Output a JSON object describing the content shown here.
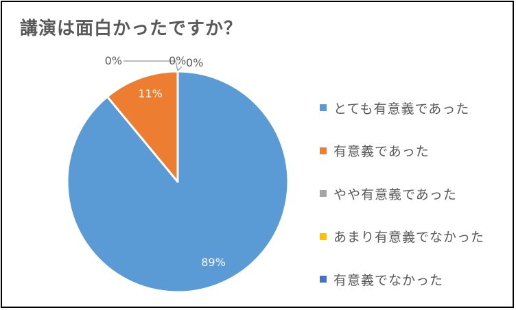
{
  "chart_data": {
    "type": "pie",
    "title": "講演は面白かったですか？",
    "categories": [
      "とても有意義であった",
      "有意義であった",
      "やや有意義であった",
      "あまり有意義でなかった",
      "有意義でなかった"
    ],
    "values": [
      89,
      11,
      0,
      0,
      0
    ],
    "data_labels": [
      "89%",
      "11%",
      "0%",
      "0%",
      "0%"
    ],
    "colors": [
      "#5B9BD5",
      "#ED7D31",
      "#A5A5A5",
      "#FFC000",
      "#4472C4"
    ],
    "legend_position": "right"
  }
}
